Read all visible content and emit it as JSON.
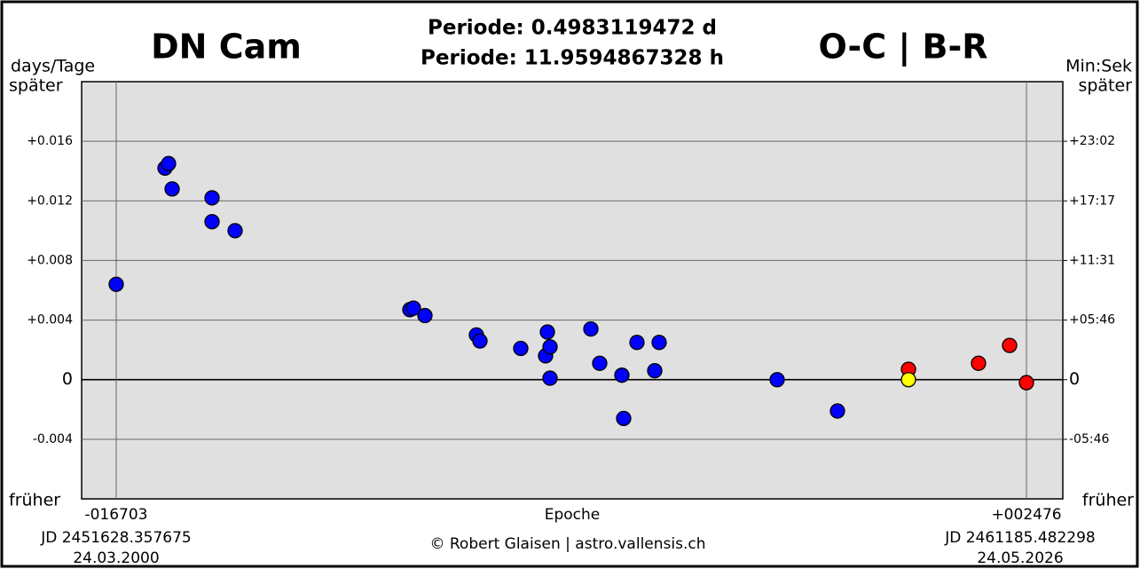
{
  "chart_data": {
    "type": "scatter",
    "title": "DN Cam",
    "subtitle": [
      "Periode: 0.4983119472 d",
      "Periode: 11.9594867328 h"
    ],
    "title_right": "O-C | B-R",
    "y_label": "days/Tage",
    "y_top": "später",
    "y_bottom": "früher",
    "y2_label": "Min:Sek",
    "y2_top": "später",
    "y2_bottom": "früher",
    "x_label": "Epoche",
    "x_left_notes": [
      "JD 2451628.357675",
      "24.03.2000"
    ],
    "x_right_notes": [
      "JD 2461185.482298",
      "24.05.2026"
    ],
    "credit": "© Robert Glaisen | astro.vallensis.ch",
    "xlim": [
      -17432,
      3242
    ],
    "xticks": [
      {
        "value": -16703,
        "label": "-016703"
      },
      {
        "value": 2476,
        "label": "+002476"
      }
    ],
    "ylim": [
      -0.008,
      0.02
    ],
    "yticks": [
      {
        "value": 0.016,
        "label": "+0.016"
      },
      {
        "value": 0.012,
        "label": "+0.012"
      },
      {
        "value": 0.008,
        "label": "+0.008"
      },
      {
        "value": 0.004,
        "label": "+0.004"
      },
      0,
      -0.004
    ],
    "y2lim": [
      -0.008,
      0.02
    ],
    "y2ticks": [
      {
        "value": 0.016,
        "label": "+23:02"
      },
      {
        "value": 0.012,
        "label": "+17:17"
      },
      {
        "value": 0.008,
        "label": "+11:31"
      },
      {
        "value": 0.004,
        "label": "+05:46"
      },
      0,
      {
        "value": -0.004,
        "label": "-05:46"
      }
    ],
    "grid": true,
    "series": [
      {
        "color": "#0000ff",
        "x": [
          -16703,
          -15675,
          -15600,
          -15525,
          -14684,
          -14684,
          -14198,
          -10516,
          -10441,
          -10198,
          -9114,
          -9039,
          -8179,
          -7618,
          -7656,
          -7562,
          -7562,
          -6702,
          -6516,
          -6048,
          -6011,
          -5731,
          -5356,
          -5263,
          -2777,
          -1506
        ],
        "values": [
          0.0064,
          0.0142,
          0.0145,
          0.0128,
          0.0122,
          0.0106,
          0.01,
          0.0047,
          0.0048,
          0.0043,
          0.003,
          0.0026,
          0.0021,
          0.0032,
          0.0016,
          0.0022,
          0.0001,
          0.0034,
          0.0011,
          0.0003,
          -0.0026,
          0.0025,
          0.0006,
          0.0025,
          0.0,
          -0.0021
        ]
      },
      {
        "color": "#ff0000",
        "x": [
          -10,
          1466,
          2120,
          2476
        ],
        "values": [
          0.0007,
          0.0011,
          0.0023,
          -0.0002
        ]
      },
      {
        "color": "#ffff00",
        "x": [
          -10
        ],
        "values": [
          0.0
        ]
      }
    ]
  }
}
